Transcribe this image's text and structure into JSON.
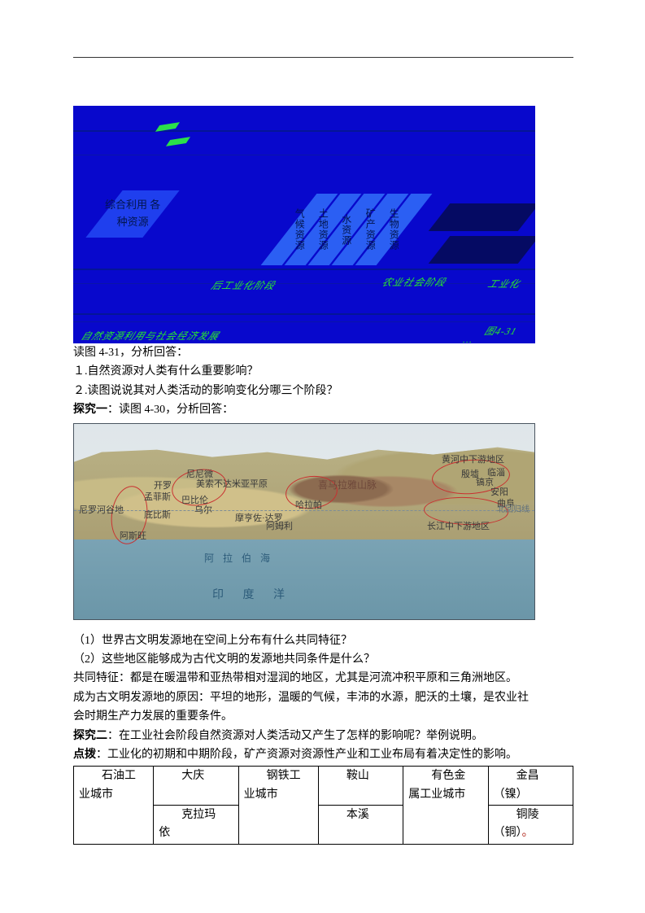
{
  "fig1": {
    "background_color": "#0808cc",
    "box_left_label": "综合利用\n各种资源",
    "resources": [
      "气候资源",
      "土地资源",
      "水资源",
      "矿产资源",
      "生物资源"
    ],
    "green_row1": "后工业化阶段",
    "green_row2": "农业社会阶段",
    "green_bottomleft": "自然资源利用与社会经济发展",
    "green_right1": "工业化",
    "green_right2": "图4-31",
    "green_far_right": "…"
  },
  "q_intro": "读图 4-31，分析回答：",
  "q1": "１.自然资源对人类有什么重要影响？",
  "q2": "２.读图说说其对人类活动的影响变化分哪三个阶段？",
  "t1_label": "探究一",
  "t1_text": "：读图 4-30，分析回答：",
  "map": {
    "labels": {
      "nile": "尼罗河谷地",
      "aswan": "阿斯旺",
      "cairo": "开罗",
      "memphis": "孟菲斯",
      "thebes": "底比斯",
      "nineveh": "尼尼微",
      "mesopotamia": "美索不达米亚平原",
      "babylon": "巴比伦",
      "ur": "乌尔",
      "mohenjo": "摩亨佐·达罗",
      "harappa": "哈拉帕",
      "himalaya": "喜马拉雅山脉",
      "ali": "阿姆利",
      "yellow": "黄河中下游地区",
      "yangtze": "长江中下游地区",
      "yinxu": "殷墟",
      "haojing": "镐京",
      "anyang": "安阳",
      "linzi": "临淄",
      "qufu": "曲阜",
      "arabian_sea": "阿 拉 伯 海",
      "indian_ocean": "印        度        洋",
      "tropic": "北回归线"
    }
  },
  "sub_q1": "（1）世界古文明发源地在空间上分布有什么共同特征？",
  "sub_q2": "（2）这些地区能够成为古代文明的发源地共同条件是什么？",
  "ans1": "共同特征：都是在暖温带和亚热带相对湿润的地区，尤其是河流冲积平原和三角洲地区。",
  "ans2a": "成为古文明发源地的原因：平坦的地形，温暖的气候，丰沛的水源，肥沃的土壤，是农业社",
  "ans2b": "会时期生产力发展的重要条件。",
  "t2_label": "探究二",
  "t2_text": "：在工业社会阶段自然资源对人类活动又产生了怎样的影响呢？举例说明。",
  "hint_label": "点拨",
  "hint_text": "：工业化的初期和中期阶段，矿产资源对资源性产业和工业布局有着决定性的影响。",
  "table": {
    "col_widths_pct": [
      16,
      17,
      16,
      17,
      17,
      17
    ],
    "rows": [
      [
        {
          "l1": "　　石油工",
          "l2": "业城市"
        },
        {
          "l1": "　　大庆",
          "l2": ""
        },
        {
          "l1": "　　钢铁工",
          "l2": "业城市"
        },
        {
          "l1": "　　鞍山",
          "l2": ""
        },
        {
          "l1": "　　有色金",
          "l2": "属工业城市"
        },
        {
          "l1": "　　金昌",
          "l2": "（镍）"
        }
      ],
      [
        {
          "l1": "",
          "l2": ""
        },
        {
          "l1": "　　克拉玛",
          "l2": "依"
        },
        {
          "l1": "",
          "l2": ""
        },
        {
          "l1": "　　本溪",
          "l2": ""
        },
        {
          "l1": "",
          "l2": ""
        },
        {
          "l1": "　　铜陵",
          "l2": "（铜）"
        }
      ]
    ],
    "red_dot_after": "（铜）"
  }
}
